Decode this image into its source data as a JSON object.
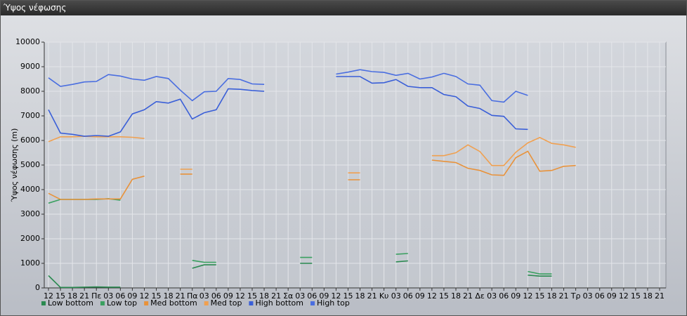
{
  "window_title": "Ύψος νέφωσης",
  "chart_data": {
    "type": "line",
    "y_label": "Ύψος νέφωσης (m)",
    "categories": [
      "12",
      "15",
      "18",
      "21",
      "Πε",
      "03",
      "06",
      "09",
      "12",
      "15",
      "18",
      "21",
      "Πα",
      "03",
      "06",
      "09",
      "12",
      "15",
      "18",
      "21",
      "Σα",
      "03",
      "06",
      "09",
      "12",
      "15",
      "18",
      "21",
      "Κυ",
      "03",
      "06",
      "09",
      "12",
      "15",
      "18",
      "21",
      "Δε",
      "03",
      "06",
      "09",
      "12",
      "15",
      "18",
      "21",
      "Τρ",
      "03",
      "06",
      "09",
      "12",
      "15",
      "18",
      "21"
    ],
    "ylim": [
      0,
      10000
    ],
    "yticks": [
      0,
      1000,
      2000,
      3000,
      4000,
      5000,
      6000,
      7000,
      8000,
      9000,
      10000
    ],
    "grid": true,
    "legend": "bottom",
    "series": [
      {
        "name": "Low bottom",
        "color": "#2a8a50",
        "values": [
          500,
          20,
          20,
          30,
          40,
          30,
          30,
          null,
          null,
          null,
          null,
          null,
          800,
          940,
          940,
          null,
          null,
          null,
          null,
          null,
          null,
          1000,
          1000,
          null,
          null,
          null,
          null,
          null,
          null,
          1060,
          1100,
          null,
          null,
          null,
          null,
          null,
          null,
          null,
          null,
          null,
          520,
          480,
          480,
          null,
          null,
          null,
          null,
          null,
          null,
          null,
          null,
          null
        ]
      },
      {
        "name": "Low top",
        "color": "#3aa060",
        "values": [
          3450,
          3600,
          3600,
          3600,
          3600,
          3630,
          3570,
          null,
          null,
          null,
          null,
          null,
          1120,
          1040,
          1040,
          null,
          null,
          null,
          null,
          null,
          null,
          1240,
          1240,
          null,
          null,
          null,
          null,
          null,
          null,
          1370,
          1400,
          null,
          null,
          null,
          null,
          null,
          null,
          null,
          null,
          null,
          670,
          570,
          570,
          null,
          null,
          null,
          null,
          null,
          null,
          null,
          null,
          null
        ]
      },
      {
        "name": "Med bottom",
        "color": "#e8923a",
        "values": [
          3850,
          3600,
          3600,
          3600,
          3620,
          3620,
          3620,
          4420,
          4550,
          null,
          null,
          4630,
          4630,
          null,
          null,
          null,
          null,
          null,
          null,
          null,
          null,
          null,
          null,
          null,
          null,
          4400,
          4400,
          null,
          null,
          null,
          null,
          null,
          5200,
          5150,
          5100,
          4870,
          4780,
          4600,
          4580,
          5300,
          5560,
          4750,
          4780,
          4950,
          4980,
          null,
          null,
          null,
          null,
          null,
          null,
          null
        ]
      },
      {
        "name": "Med top",
        "color": "#f0a050",
        "values": [
          5950,
          6150,
          6150,
          6170,
          6150,
          6150,
          6150,
          6130,
          6080,
          null,
          null,
          4830,
          4830,
          null,
          null,
          null,
          null,
          null,
          null,
          null,
          null,
          null,
          null,
          null,
          null,
          4680,
          4680,
          null,
          null,
          null,
          null,
          null,
          5380,
          5380,
          5500,
          5820,
          5550,
          4980,
          4980,
          5520,
          5900,
          6120,
          5880,
          5820,
          5720,
          null,
          null,
          null,
          null,
          null,
          null,
          null
        ]
      },
      {
        "name": "High bottom",
        "color": "#3a5fd8",
        "values": [
          7250,
          6300,
          6250,
          6170,
          6200,
          6170,
          6350,
          7080,
          7250,
          7580,
          7520,
          7680,
          6870,
          7130,
          7250,
          8100,
          8080,
          8030,
          8000,
          null,
          null,
          null,
          null,
          null,
          8600,
          8600,
          8600,
          8330,
          8350,
          8480,
          8200,
          8150,
          8150,
          7870,
          7780,
          7400,
          7300,
          7020,
          6980,
          6470,
          6450,
          null,
          null,
          null,
          null,
          null,
          null,
          null,
          null,
          null,
          null,
          null
        ]
      },
      {
        "name": "High top",
        "color": "#4a6ee0",
        "values": [
          8550,
          8200,
          8280,
          8380,
          8400,
          8680,
          8620,
          8500,
          8450,
          8600,
          8520,
          8050,
          7620,
          7980,
          8000,
          8520,
          8480,
          8300,
          8280,
          null,
          null,
          null,
          null,
          null,
          8700,
          8780,
          8880,
          8800,
          8770,
          8650,
          8730,
          8500,
          8580,
          8730,
          8600,
          8300,
          8250,
          7620,
          7560,
          8000,
          7830,
          null,
          null,
          null,
          null,
          null,
          null,
          null,
          null,
          null,
          null,
          null
        ]
      }
    ]
  }
}
